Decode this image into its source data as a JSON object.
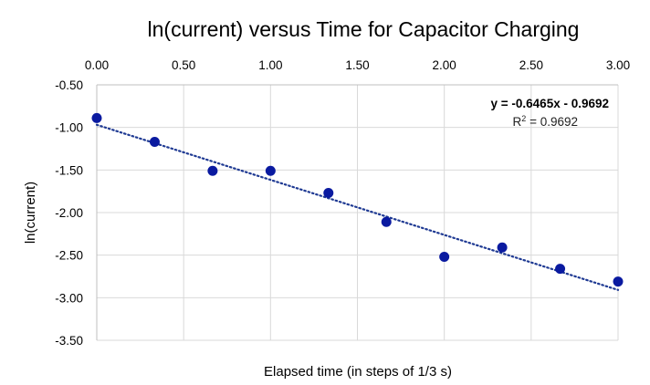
{
  "chart_data": {
    "type": "scatter",
    "title": "ln(current) versus Time for Capacitor Charging",
    "xlabel": "Elapsed time (in steps of 1/3 s)",
    "ylabel": "ln(current)",
    "xlim": [
      0,
      3
    ],
    "ylim": [
      -3.5,
      -0.5
    ],
    "x_ticks": [
      0,
      0.5,
      1,
      1.5,
      2,
      2.5,
      3
    ],
    "y_ticks": [
      -0.5,
      -1,
      -1.5,
      -2,
      -2.5,
      -3,
      -3.5
    ],
    "x_tick_labels": [
      "0.00",
      "0.50",
      "1.00",
      "1.50",
      "2.00",
      "2.50",
      "3.00"
    ],
    "y_tick_labels": [
      "-0.50",
      "-1.00",
      "-1.50",
      "-2.00",
      "-2.50",
      "-3.00",
      "-3.50"
    ],
    "x_axis_position": "top",
    "grid": true,
    "points": {
      "x": [
        0,
        0.3333,
        0.6667,
        1,
        1.3333,
        1.6667,
        2,
        2.3333,
        2.6667,
        3
      ],
      "y": [
        -0.89,
        -1.17,
        -1.51,
        -1.51,
        -1.77,
        -2.11,
        -2.52,
        -2.41,
        -2.66,
        -2.81
      ]
    },
    "trendline": {
      "slope": -0.6465,
      "intercept": -0.9692,
      "equation": "y = -0.6465x - 0.9692",
      "r2_label": "R",
      "r2_sup": "2",
      "r2_value": " = 0.9692",
      "style": "dotted"
    },
    "colors": {
      "marker": "#0a1aa0",
      "trendline": "#1f3a93",
      "grid": "#d9d9d9",
      "axis": "#bfbfbf"
    }
  }
}
